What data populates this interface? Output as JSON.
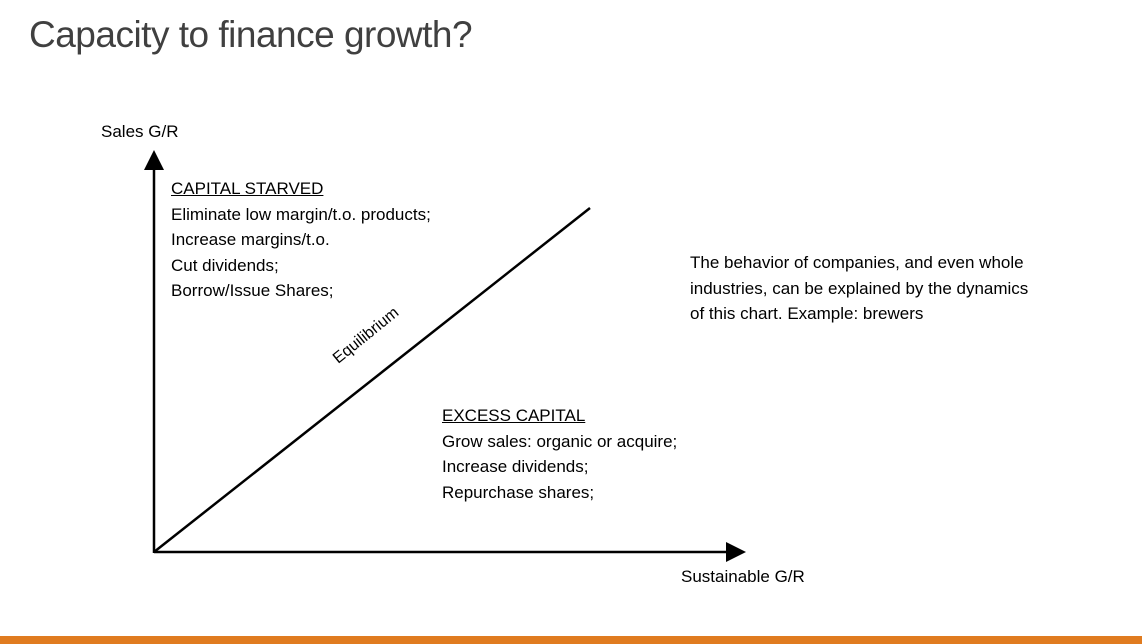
{
  "slide": {
    "title": "Capacity to finance growth?"
  },
  "diagram": {
    "y_axis_label": "Sales G/R",
    "x_axis_label": "Sustainable G/R",
    "diagonal_label": "Equilibrium",
    "capital_starved": {
      "heading": "CAPITAL STARVED",
      "lines": [
        "Eliminate low margin/t.o. products;",
        "Increase margins/t.o.",
        "Cut dividends;",
        "Borrow/Issue Shares;"
      ]
    },
    "excess_capital": {
      "heading": "EXCESS CAPITAL",
      "lines": [
        "Grow sales:  organic or acquire;",
        "Increase dividends;",
        "Repurchase shares;"
      ]
    }
  },
  "note": {
    "lines": [
      "The behavior of companies, and even whole",
      "industries, can be explained by the dynamics",
      "of this chart.  Example:  brewers"
    ]
  },
  "colors": {
    "title": "#404040",
    "lines": "#000000",
    "accent_bar": "#E07B1F"
  }
}
